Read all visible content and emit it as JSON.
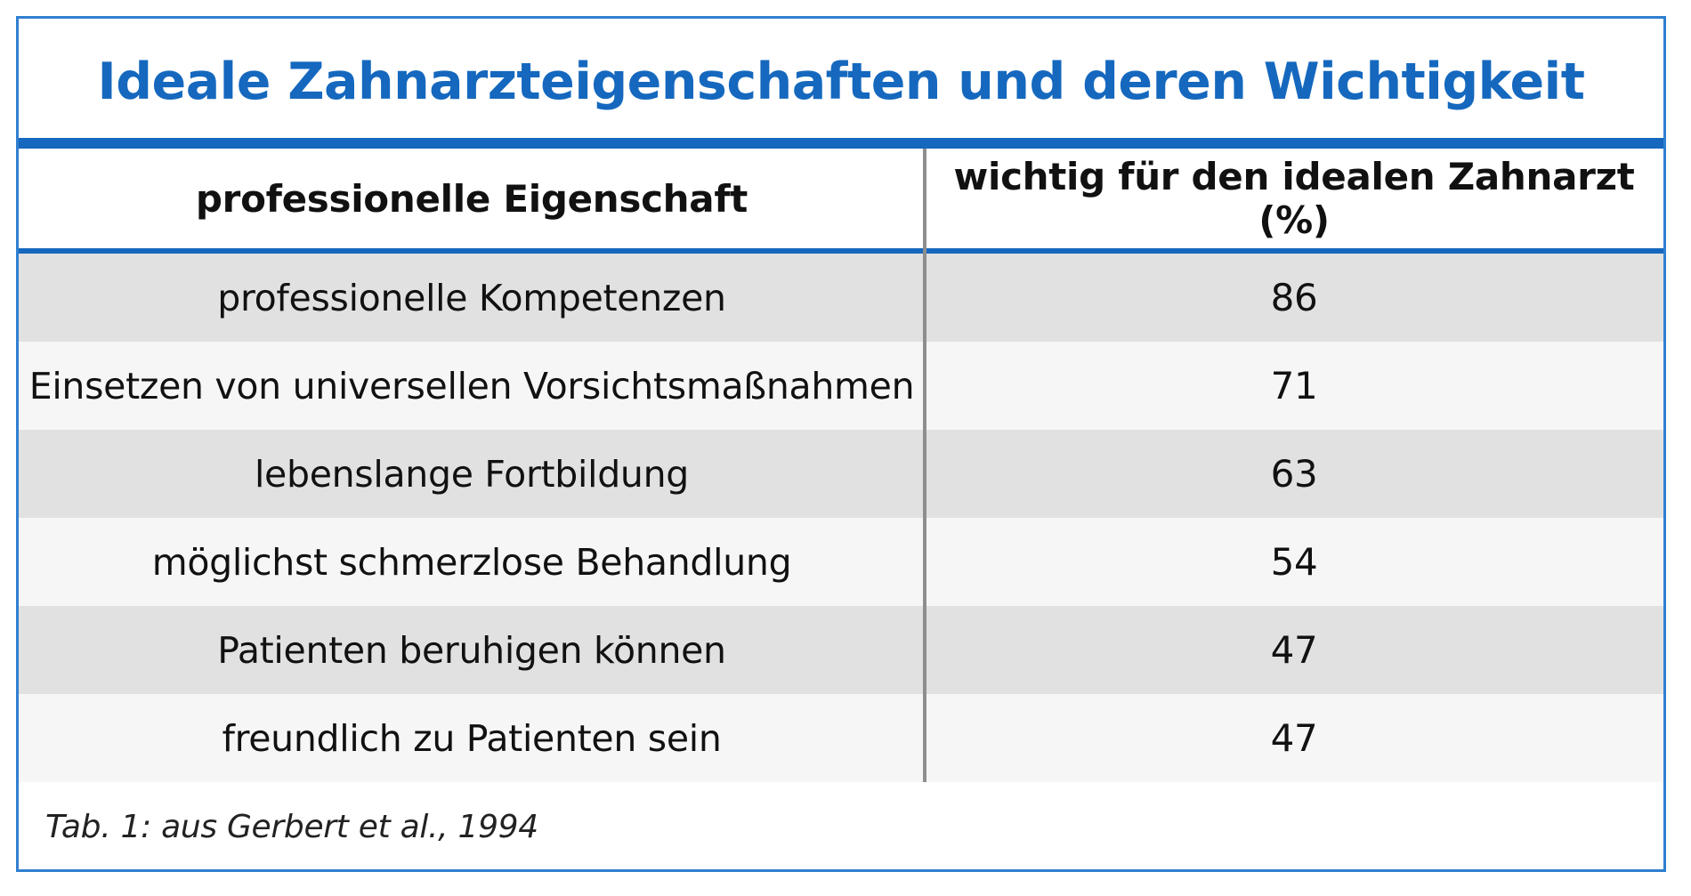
{
  "title": "Ideale Zahnarzteigenschaften und deren Wichtigkeit",
  "table": {
    "headers": [
      "professionelle Eigenschaft",
      "wichtig für den idealen Zahnarzt (%)"
    ],
    "rows": [
      {
        "property": "professionelle Kompetenzen",
        "value": "86"
      },
      {
        "property": "Einsetzen von universellen Vorsichtsmaßnahmen",
        "value": "71"
      },
      {
        "property": "lebenslange Fortbildung",
        "value": "63"
      },
      {
        "property": "möglichst schmerzlose Behandlung",
        "value": "54"
      },
      {
        "property": "Patienten beruhigen können",
        "value": "47"
      },
      {
        "property": "freundlich zu Patienten sein",
        "value": "47"
      }
    ]
  },
  "caption": "Tab. 1: aus Gerbert et al., 1994",
  "colors": {
    "accent": "#1568be",
    "border": "#2f7fd0",
    "row_shade": "#e1e1e1",
    "row_light": "#f6f6f6"
  }
}
